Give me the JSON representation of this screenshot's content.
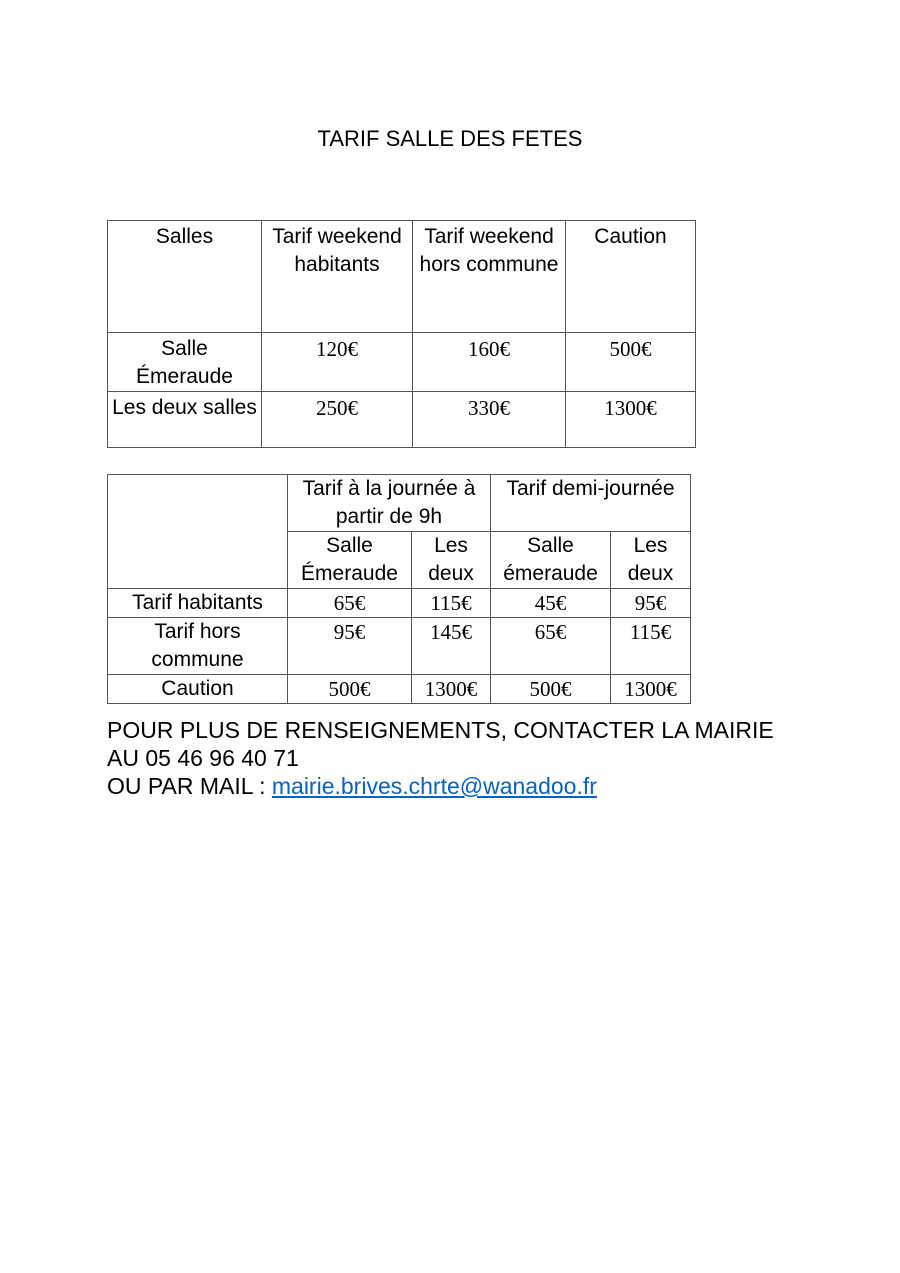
{
  "title": "TARIF SALLE DES FETES",
  "table1": {
    "headers": [
      "Salles",
      "Tarif weekend habitants",
      "Tarif weekend hors commune",
      "Caution"
    ],
    "rows": [
      [
        "Salle Émeraude",
        "120€",
        "160€",
        "500€"
      ],
      [
        "Les deux salles",
        "250€",
        "330€",
        "1300€"
      ]
    ]
  },
  "table2": {
    "group_headers": [
      "Tarif à la journée à partir de 9h",
      "Tarif demi-journée"
    ],
    "sub_headers": [
      "Salle Émeraude",
      "Les deux",
      "Salle émeraude",
      "Les deux"
    ],
    "rows": [
      [
        "Tarif habitants",
        "65€",
        "115€",
        "45€",
        "95€"
      ],
      [
        "Tarif hors commune",
        "95€",
        "145€",
        "65€",
        "115€"
      ],
      [
        "Caution",
        "500€",
        "1300€",
        "500€",
        "1300€"
      ]
    ]
  },
  "contact": {
    "line1": "POUR PLUS DE RENSEIGNEMENTS, CONTACTER LA MAIRIE",
    "line2": "AU 05 46 96 40 71",
    "line3_prefix": "OU PAR MAIL : ",
    "email": "mairie.brives.chrte@wanadoo.fr",
    "link_color": "#0563c1"
  }
}
